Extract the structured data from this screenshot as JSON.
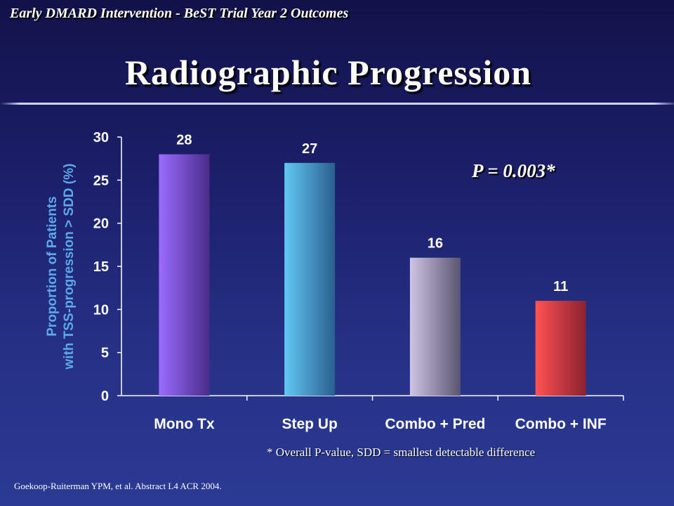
{
  "header": {
    "banner": "Early DMARD Intervention - BeST Trial Year 2 Outcomes",
    "title": "Radiographic Progression"
  },
  "annotation": {
    "pvalue": "P = 0.003*",
    "footnote": "* Overall P-value, SDD = smallest detectable difference"
  },
  "citation": "Goekoop-Ruiterman YPM, et al. Abstract L4 ACR 2004.",
  "chart_data": {
    "type": "bar",
    "categories": [
      "Mono Tx",
      "Step Up",
      "Combo + Pred",
      "Combo + INF"
    ],
    "values": [
      28,
      27,
      16,
      11
    ],
    "data_labels": [
      "28",
      "27",
      "16",
      "11"
    ],
    "title": "",
    "xlabel": "",
    "ylabel": [
      "Proportion of Patients",
      "with TSS-progression > SDD (%)"
    ],
    "ylim": [
      0,
      30
    ],
    "yticks": [
      0,
      5,
      10,
      15,
      20,
      25,
      30
    ],
    "grid": false,
    "legend": "none",
    "bar_colors": [
      [
        "#9b6cff",
        "#4a2c8a"
      ],
      [
        "#62c8f5",
        "#2a5f8e"
      ],
      [
        "#cfc4e3",
        "#5a5570"
      ],
      [
        "#ff5252",
        "#8a2230"
      ]
    ]
  }
}
